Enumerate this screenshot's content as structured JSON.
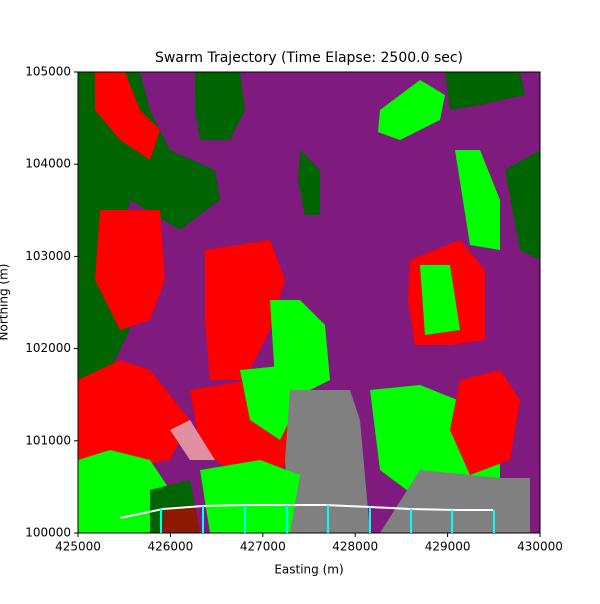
{
  "chart_data": {
    "type": "line",
    "title": "Swarm Trajectory (Time Elapse: 2500.0 sec)",
    "xlabel": "Easting (m)",
    "ylabel": "Northing (m)",
    "xlim": [
      425000,
      430000
    ],
    "ylim": [
      100000,
      105000
    ],
    "xticks": [
      425000,
      426000,
      427000,
      428000,
      429000,
      430000
    ],
    "yticks": [
      100000,
      101000,
      102000,
      103000,
      104000,
      105000
    ],
    "series": [
      {
        "color": "#ffffff",
        "type": "line",
        "x": [
          425455,
          425920,
          426353,
          426807,
          427294,
          427673,
          428160,
          428593,
          429080,
          429491
        ],
        "values": [
          100163,
          100260,
          100293,
          100304,
          100304,
          100304,
          100282,
          100260,
          100250,
          100250
        ]
      },
      {
        "color": "#00ffff",
        "type": "stem",
        "x": [
          425898,
          426353,
          426807,
          427262,
          427706,
          428160,
          428604,
          429048,
          429502
        ],
        "values": [
          100260,
          100293,
          100304,
          100304,
          100304,
          100282,
          100260,
          100250,
          100250
        ]
      }
    ]
  }
}
